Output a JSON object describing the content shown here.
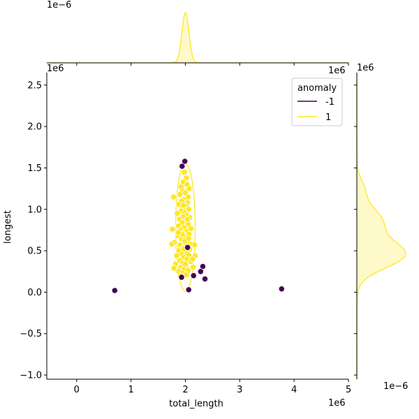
{
  "chart_data": {
    "type": "scatter",
    "xlabel": "total_length",
    "ylabel": "longest",
    "x_offset_label": "1e6",
    "y_offset_label": "1e6",
    "xlim": [
      -0.55,
      5.0
    ],
    "ylim": [
      -1.05,
      2.65
    ],
    "x_ticks": [
      "0",
      "1",
      "2",
      "3",
      "4",
      "5"
    ],
    "x_tick_values": [
      0,
      1,
      2,
      3,
      4,
      5
    ],
    "y_ticks": [
      "−1.0",
      "−0.5",
      "0.0",
      "0.5",
      "1.0",
      "1.5",
      "2.0",
      "2.5"
    ],
    "y_tick_values": [
      -1.0,
      -0.5,
      0.0,
      0.5,
      1.0,
      1.5,
      2.0,
      2.5
    ],
    "marginal_top_offset_label": "1e−6",
    "marginal_top_right_label": "1e6",
    "marginal_right_offset_label": "1e6",
    "marginal_right_bottom_label": "1e−6",
    "marginal_top_density": {
      "center": 2.0,
      "sd": 0.065
    },
    "marginal_right_density": {
      "components": [
        {
          "mean": 0.45,
          "sd": 0.16,
          "weight": 0.6
        },
        {
          "mean": 0.85,
          "sd": 0.18,
          "weight": 0.32
        },
        {
          "mean": 1.25,
          "sd": 0.12,
          "weight": 0.08
        }
      ]
    },
    "kde_contour": {
      "center": [
        2.0,
        0.78
      ],
      "rx": 0.18,
      "ry": 0.77
    },
    "legend": {
      "title": "anomaly",
      "position": "top-right",
      "entries": [
        {
          "label": "-1",
          "color": "#440154"
        },
        {
          "label": "1",
          "color": "#fde725"
        }
      ]
    },
    "series": [
      {
        "name": "-1",
        "color": "#440154",
        "points": [
          [
            0.7,
            0.02
          ],
          [
            3.77,
            0.04
          ],
          [
            1.99,
            1.58
          ],
          [
            1.94,
            1.52
          ],
          [
            2.06,
            0.03
          ],
          [
            2.32,
            0.31
          ],
          [
            2.28,
            0.25
          ],
          [
            2.36,
            0.16
          ],
          [
            2.15,
            0.2
          ],
          [
            1.93,
            0.18
          ],
          [
            2.04,
            0.54
          ]
        ]
      },
      {
        "name": "1",
        "color": "#fde725",
        "points": [
          [
            1.98,
            1.45
          ],
          [
            2.02,
            1.38
          ],
          [
            1.96,
            1.33
          ],
          [
            2.03,
            1.3
          ],
          [
            1.92,
            1.27
          ],
          [
            2.07,
            1.25
          ],
          [
            1.95,
            1.22
          ],
          [
            2.0,
            1.2
          ],
          [
            1.9,
            1.18
          ],
          [
            2.05,
            1.15
          ],
          [
            1.78,
            1.15
          ],
          [
            1.97,
            1.12
          ],
          [
            1.93,
            1.1
          ],
          [
            2.04,
            1.08
          ],
          [
            1.88,
            1.06
          ],
          [
            2.01,
            1.04
          ],
          [
            1.95,
            1.02
          ],
          [
            2.06,
            1.0
          ],
          [
            1.92,
            0.98
          ],
          [
            1.99,
            0.96
          ],
          [
            1.85,
            0.95
          ],
          [
            2.03,
            0.93
          ],
          [
            1.96,
            0.91
          ],
          [
            2.08,
            0.9
          ],
          [
            1.89,
            0.88
          ],
          [
            2.0,
            0.86
          ],
          [
            1.94,
            0.84
          ],
          [
            2.05,
            0.82
          ],
          [
            1.87,
            0.8
          ],
          [
            1.98,
            0.78
          ],
          [
            2.1,
            0.77
          ],
          [
            1.91,
            0.75
          ],
          [
            1.76,
            0.76
          ],
          [
            2.02,
            0.73
          ],
          [
            1.95,
            0.71
          ],
          [
            2.07,
            0.7
          ],
          [
            1.86,
            0.68
          ],
          [
            1.99,
            0.66
          ],
          [
            1.93,
            0.64
          ],
          [
            2.04,
            0.62
          ],
          [
            1.8,
            0.6
          ],
          [
            1.97,
            0.59
          ],
          [
            2.12,
            0.58
          ],
          [
            1.9,
            0.57
          ],
          [
            2.01,
            0.55
          ],
          [
            1.95,
            0.53
          ],
          [
            2.08,
            0.52
          ],
          [
            1.75,
            0.58
          ],
          [
            1.88,
            0.5
          ],
          [
            2.0,
            0.48
          ],
          [
            1.93,
            0.46
          ],
          [
            2.06,
            0.45
          ],
          [
            1.84,
            0.44
          ],
          [
            2.18,
            0.44
          ],
          [
            1.97,
            0.42
          ],
          [
            2.03,
            0.4
          ],
          [
            1.9,
            0.38
          ],
          [
            2.1,
            0.37
          ],
          [
            1.95,
            0.35
          ],
          [
            1.82,
            0.34
          ],
          [
            2.01,
            0.32
          ],
          [
            1.92,
            0.3
          ],
          [
            2.14,
            0.3
          ],
          [
            1.79,
            0.29
          ],
          [
            1.98,
            0.28
          ],
          [
            2.05,
            0.26
          ],
          [
            1.88,
            0.25
          ],
          [
            1.95,
            0.23
          ],
          [
            2.02,
            0.21
          ],
          [
            1.91,
            0.2
          ],
          [
            2.17,
            0.57
          ],
          [
            2.13,
            0.4
          ],
          [
            1.99,
            0.62
          ],
          [
            1.94,
            0.7
          ],
          [
            2.04,
            0.88
          ],
          [
            1.96,
            1.05
          ],
          [
            2.06,
            0.65
          ],
          [
            1.87,
            0.72
          ],
          [
            2.0,
            0.34
          ],
          [
            1.97,
            0.52
          ]
        ]
      }
    ]
  }
}
